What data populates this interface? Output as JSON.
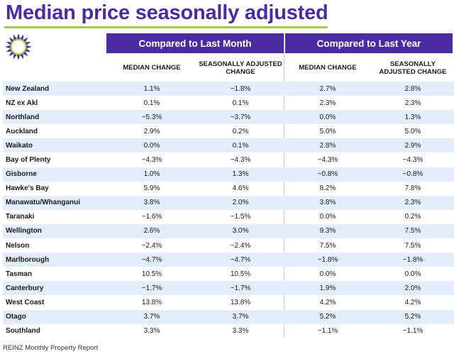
{
  "title": "Median price seasonally adjusted",
  "colors": {
    "brand_purple": "#4b2ca0",
    "accent_green": "#9ccd3c",
    "row_alt": "#e4eefb"
  },
  "logo_icon": "reinz-sun-logo-icon",
  "groups": {
    "month": "Compared to Last Month",
    "year": "Compared to Last Year"
  },
  "columns": {
    "month_median": "MEDIAN CHANGE",
    "month_seasonal": "SEASONALLY ADJUSTED CHANGE",
    "year_median": "MEDIAN CHANGE",
    "year_seasonal": "SEASONALLY ADJUSTED CHANGE"
  },
  "rows": [
    {
      "region": "New Zealand",
      "month_median": "1.1%",
      "month_seasonal": "−1.8%",
      "year_median": "2.7%",
      "year_seasonal": "2.8%"
    },
    {
      "region": "NZ ex Akl",
      "month_median": "0.1%",
      "month_seasonal": "0.1%",
      "year_median": "2.3%",
      "year_seasonal": "2.3%"
    },
    {
      "region": "Northland",
      "month_median": "−5.3%",
      "month_seasonal": "−3.7%",
      "year_median": "0.0%",
      "year_seasonal": "1.3%"
    },
    {
      "region": "Auckland",
      "month_median": "2.9%",
      "month_seasonal": "0.2%",
      "year_median": "5.0%",
      "year_seasonal": "5.0%"
    },
    {
      "region": "Waikato",
      "month_median": "0.0%",
      "month_seasonal": "0.1%",
      "year_median": "2.8%",
      "year_seasonal": "2.9%"
    },
    {
      "region": "Bay of Plenty",
      "month_median": "−4.3%",
      "month_seasonal": "−4.3%",
      "year_median": "−4.3%",
      "year_seasonal": "−4.3%"
    },
    {
      "region": "Gisborne",
      "month_median": "1.0%",
      "month_seasonal": "1.3%",
      "year_median": "−0.8%",
      "year_seasonal": "−0.8%"
    },
    {
      "region": "Hawke's Bay",
      "month_median": "5.9%",
      "month_seasonal": "4.6%",
      "year_median": "8.2%",
      "year_seasonal": "7.8%"
    },
    {
      "region": "Manawatu/Whanganui",
      "month_median": "3.8%",
      "month_seasonal": "2.0%",
      "year_median": "3.8%",
      "year_seasonal": "2.3%"
    },
    {
      "region": "Taranaki",
      "month_median": "−1.6%",
      "month_seasonal": "−1.5%",
      "year_median": "0.0%",
      "year_seasonal": "0.2%"
    },
    {
      "region": "Wellington",
      "month_median": "2.6%",
      "month_seasonal": "3.0%",
      "year_median": "9.3%",
      "year_seasonal": "7.5%"
    },
    {
      "region": "Nelson",
      "month_median": "−2.4%",
      "month_seasonal": "−2.4%",
      "year_median": "7.5%",
      "year_seasonal": "7.5%"
    },
    {
      "region": "Marlborough",
      "month_median": "−4.7%",
      "month_seasonal": "−4.7%",
      "year_median": "−1.8%",
      "year_seasonal": "−1.8%"
    },
    {
      "region": "Tasman",
      "month_median": "10.5%",
      "month_seasonal": "10.5%",
      "year_median": "0.0%",
      "year_seasonal": "0.0%"
    },
    {
      "region": "Canterbury",
      "month_median": "−1.7%",
      "month_seasonal": "−1.7%",
      "year_median": "1.9%",
      "year_seasonal": "2.0%"
    },
    {
      "region": "West Coast",
      "month_median": "13.8%",
      "month_seasonal": "13.8%",
      "year_median": "4.2%",
      "year_seasonal": "4.2%"
    },
    {
      "region": "Otago",
      "month_median": "3.7%",
      "month_seasonal": "3.7%",
      "year_median": "5.2%",
      "year_seasonal": "5.2%"
    },
    {
      "region": "Southland",
      "month_median": "3.3%",
      "month_seasonal": "3.3%",
      "year_median": "−1.1%",
      "year_seasonal": "−1.1%"
    }
  ],
  "footer": "REINZ Monthly Property Report"
}
